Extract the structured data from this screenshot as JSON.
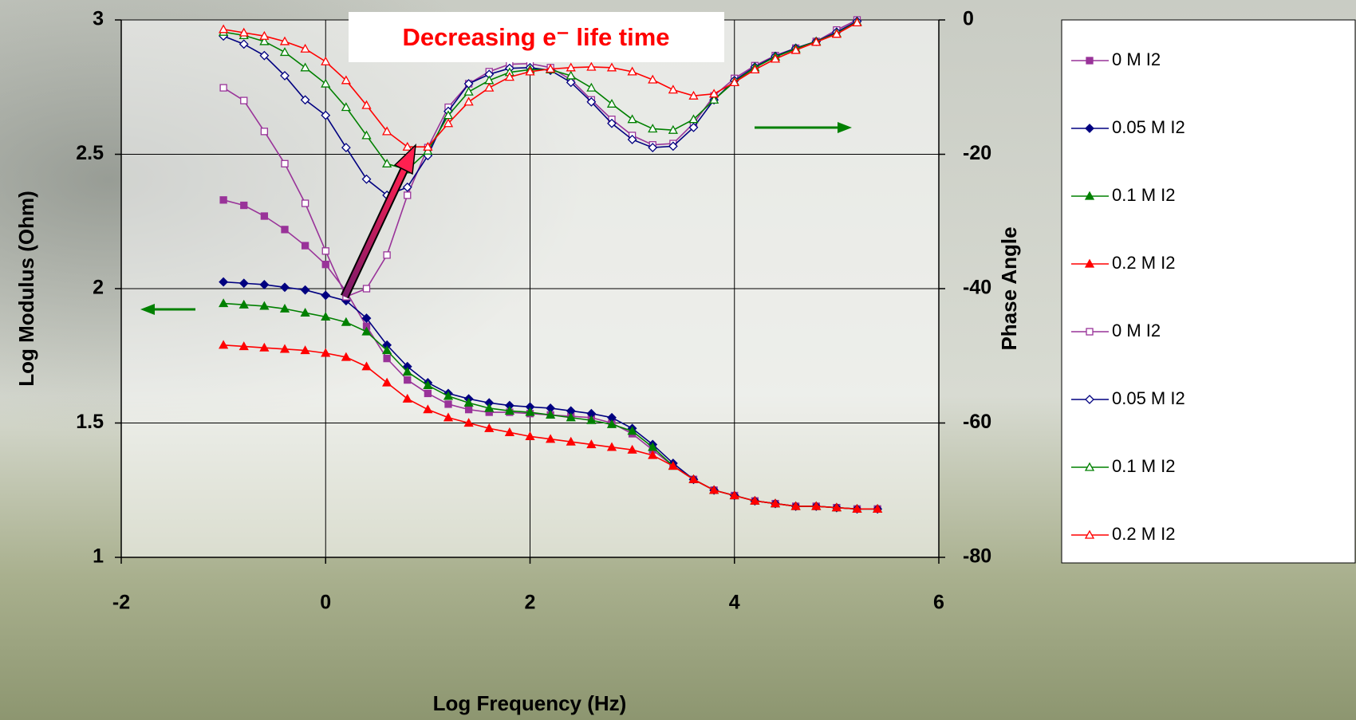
{
  "chart_data": {
    "type": "line",
    "annotations": [
      "Decreasing e⁻ life time"
    ],
    "x_label": "Log Frequency (Hz)",
    "y_label": "Log Modulus (Ohm)",
    "y2_label": "Phase Angle",
    "x": [
      -1,
      -0.8,
      -0.6,
      -0.4,
      -0.2,
      0,
      0.2,
      0.4,
      0.6,
      0.8,
      1,
      1.2,
      1.4,
      1.6,
      1.8,
      2,
      2.2,
      2.4,
      2.6,
      2.8,
      3,
      3.2,
      3.4,
      3.6,
      3.8,
      4,
      4.2,
      4.4,
      4.6,
      4.8,
      5,
      5.2,
      5.4
    ],
    "xlim": [
      -2,
      6
    ],
    "xticks": [
      -2,
      0,
      2,
      4,
      6
    ],
    "ylim": [
      1,
      3
    ],
    "yticks": [
      1,
      1.5,
      2,
      2.5,
      3
    ],
    "y2lim": [
      -80,
      0
    ],
    "y2ticks": [
      -80,
      -60,
      -40,
      -20,
      0
    ],
    "grid": true,
    "legend": "right",
    "series": [
      {
        "name": "0 M I2",
        "color": "#993399",
        "marker": "square",
        "filled": true,
        "values": [
          2.33,
          2.31,
          2.27,
          2.22,
          2.16,
          2.09,
          1.99,
          1.86,
          1.74,
          1.66,
          1.61,
          1.57,
          1.55,
          1.54,
          1.54,
          1.535,
          1.53,
          1.525,
          1.52,
          1.5,
          1.46,
          1.4,
          1.34,
          1.29,
          1.25,
          1.23,
          1.21,
          1.2,
          1.19,
          1.19,
          1.185,
          1.18,
          1.18
        ]
      },
      {
        "name": "0.05 M I2",
        "color": "#000080",
        "marker": "diamond",
        "filled": true,
        "values": [
          2.025,
          2.02,
          2.015,
          2.005,
          1.995,
          1.975,
          1.955,
          1.89,
          1.79,
          1.71,
          1.65,
          1.61,
          1.59,
          1.575,
          1.565,
          1.56,
          1.555,
          1.545,
          1.535,
          1.52,
          1.48,
          1.42,
          1.35,
          1.29,
          1.25,
          1.23,
          1.21,
          1.2,
          1.19,
          1.19,
          1.185,
          1.18,
          1.18
        ]
      },
      {
        "name": "0.1 M I2",
        "color": "#008000",
        "marker": "triangle",
        "filled": true,
        "values": [
          1.945,
          1.94,
          1.935,
          1.925,
          1.91,
          1.895,
          1.875,
          1.84,
          1.77,
          1.69,
          1.64,
          1.6,
          1.575,
          1.555,
          1.545,
          1.54,
          1.53,
          1.52,
          1.51,
          1.495,
          1.47,
          1.41,
          1.34,
          1.29,
          1.25,
          1.23,
          1.21,
          1.2,
          1.19,
          1.19,
          1.185,
          1.18,
          1.18
        ]
      },
      {
        "name": "0.2 M I2",
        "color": "#ff0000",
        "marker": "triangle",
        "filled": true,
        "values": [
          1.79,
          1.785,
          1.78,
          1.775,
          1.77,
          1.76,
          1.745,
          1.71,
          1.65,
          1.59,
          1.55,
          1.52,
          1.5,
          1.48,
          1.465,
          1.45,
          1.44,
          1.43,
          1.42,
          1.41,
          1.4,
          1.38,
          1.34,
          1.29,
          1.25,
          1.23,
          1.21,
          1.2,
          1.19,
          1.19,
          1.185,
          1.18,
          1.18
        ]
      },
      {
        "name": "0 M I2",
        "color": "#993399",
        "marker": "square",
        "filled": false,
        "axis": "y2",
        "values": [
          -10.1,
          -12,
          -16.6,
          -21.4,
          -27.3,
          -34.4,
          -41.2,
          -40,
          -35,
          -26.1,
          -19,
          -13,
          -9.5,
          -7.7,
          -6.6,
          -6.5,
          -7.1,
          -8.9,
          -11.9,
          -14.8,
          -17.2,
          -18.6,
          -18.4,
          -15.4,
          -11.3,
          -8.7,
          -6.8,
          -5.3,
          -4.2,
          -3.2,
          -1.5,
          0,
          null
        ]
      },
      {
        "name": "0.05 M I2",
        "color": "#000080",
        "marker": "diamond",
        "filled": false,
        "axis": "y2",
        "values": [
          -2.4,
          -3.6,
          -5.3,
          -8.3,
          -11.9,
          -14.2,
          -19,
          -23.7,
          -26.1,
          -24.9,
          -20.2,
          -13.6,
          -9.5,
          -8.1,
          -7.2,
          -7.1,
          -7.5,
          -9.3,
          -12.2,
          -15.4,
          -17.8,
          -19,
          -18.8,
          -16,
          -11.9,
          -9,
          -7,
          -5.4,
          -4.2,
          -3.2,
          -1.8,
          -0.2,
          null
        ]
      },
      {
        "name": "0.1 M I2",
        "color": "#008000",
        "marker": "triangle",
        "filled": false,
        "axis": "y2",
        "values": [
          -1.8,
          -2.3,
          -3.2,
          -4.8,
          -7.1,
          -9.5,
          -13,
          -17.2,
          -21.4,
          -22.3,
          -19.5,
          -14.2,
          -10.7,
          -9,
          -7.8,
          -7.4,
          -7.4,
          -8.3,
          -10.1,
          -12.5,
          -14.8,
          -16.2,
          -16.4,
          -14.8,
          -11.9,
          -9.2,
          -7.1,
          -5.5,
          -4.3,
          -3.2,
          -2,
          -0.3,
          null
        ]
      },
      {
        "name": "0.2 M I2",
        "color": "#ff0000",
        "marker": "triangle",
        "filled": false,
        "axis": "y2",
        "values": [
          -1.4,
          -1.9,
          -2.4,
          -3.2,
          -4.3,
          -6.2,
          -9,
          -12.7,
          -16.6,
          -18.9,
          -18.9,
          -15.4,
          -12.2,
          -10.1,
          -8.5,
          -7.7,
          -7.3,
          -7.1,
          -7,
          -7.1,
          -7.7,
          -8.9,
          -10.4,
          -11.3,
          -11,
          -9.3,
          -7.4,
          -5.8,
          -4.5,
          -3.3,
          -2.1,
          -0.4,
          null
        ]
      }
    ]
  }
}
